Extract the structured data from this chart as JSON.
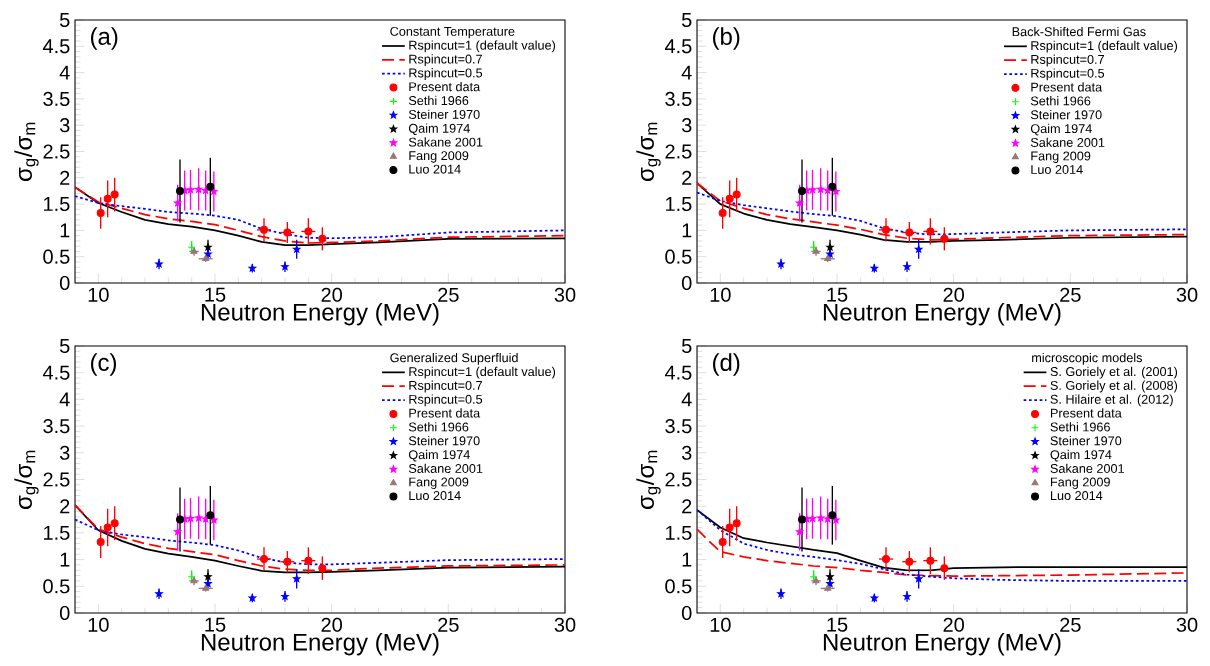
{
  "chart_data": [
    {
      "type": "line",
      "annotations": [
        "(a)"
      ],
      "legend_title": "Constant Temperature",
      "xlabel": "Neutron Energy (MeV)",
      "ylabel": "σ$_{g}$/σ$_{m}$",
      "xlim": [
        9,
        30
      ],
      "ylim": [
        0,
        5
      ],
      "xticks": [
        10,
        15,
        20,
        25,
        30
      ],
      "yticks": [
        0,
        0.5,
        1,
        1.5,
        2,
        2.5,
        3,
        3.5,
        4,
        4.5,
        5
      ],
      "legend": "top right",
      "series": [
        {
          "name": "Rspincut=1 (default value)",
          "color": "#000000",
          "line_style": "solid",
          "marker": "none",
          "x": [
            9,
            10,
            11,
            12,
            13,
            14,
            15,
            16,
            17,
            18,
            19,
            20,
            22,
            25,
            30
          ],
          "values": [
            1.82,
            1.52,
            1.35,
            1.2,
            1.12,
            1.07,
            1.0,
            0.9,
            0.78,
            0.72,
            0.72,
            0.74,
            0.77,
            0.84,
            0.85
          ]
        },
        {
          "name": "Rspincut=0.7",
          "color": "#ff0000",
          "line_style": "dashed",
          "marker": "none",
          "x": [
            9,
            10,
            11,
            12,
            13,
            14,
            15,
            16,
            17,
            18,
            19,
            20,
            22,
            25,
            30
          ],
          "values": [
            1.82,
            1.54,
            1.42,
            1.3,
            1.22,
            1.17,
            1.11,
            1.0,
            0.88,
            0.8,
            0.76,
            0.77,
            0.8,
            0.87,
            0.9
          ]
        },
        {
          "name": "Rspincut=0.5",
          "color": "#0000ff",
          "line_style": "dotted",
          "marker": "none",
          "x": [
            9,
            10,
            11,
            12,
            13,
            14,
            15,
            16,
            17,
            18,
            19,
            20,
            22,
            25,
            30
          ],
          "values": [
            1.65,
            1.52,
            1.46,
            1.41,
            1.35,
            1.32,
            1.28,
            1.2,
            1.03,
            0.93,
            0.86,
            0.85,
            0.87,
            0.96,
            1.0
          ]
        },
        {
          "name": "Present data",
          "type": "scatter",
          "color": "#ff0000",
          "marker": "circle",
          "x": [
            10.1,
            10.4,
            10.7,
            17.1,
            18.1,
            19.0,
            19.6
          ],
          "values": [
            1.33,
            1.6,
            1.68,
            1.01,
            0.96,
            0.98,
            0.84
          ],
          "errors": [
            0.3,
            0.35,
            0.32,
            0.22,
            0.2,
            0.25,
            0.22
          ],
          "xerrors": [
            null,
            null,
            null,
            0.3,
            0.3,
            0.3,
            null
          ]
        },
        {
          "name": "Sethi 1966",
          "type": "scatter",
          "color": "#00ff00",
          "marker": "cross",
          "x": [
            14.0
          ],
          "values": [
            0.68
          ],
          "errors": [
            0.12
          ]
        },
        {
          "name": "Steiner 1970",
          "type": "scatter",
          "color": "#0000ff",
          "marker": "star",
          "x": [
            12.6,
            14.7,
            16.6,
            18.0,
            18.5
          ],
          "values": [
            0.36,
            0.55,
            0.28,
            0.31,
            0.64
          ],
          "errors": [
            0.1,
            0.1,
            0.08,
            0.1,
            0.18
          ]
        },
        {
          "name": "Qaim 1974",
          "type": "scatter",
          "color": "#000000",
          "marker": "star",
          "x": [
            14.7
          ],
          "values": [
            0.68
          ],
          "errors": [
            0.14
          ]
        },
        {
          "name": "Sakane 2001",
          "type": "scatter",
          "color": "#ff00ff",
          "marker": "star",
          "x": [
            13.4,
            13.7,
            13.95,
            14.3,
            14.6,
            14.95
          ],
          "values": [
            1.52,
            1.76,
            1.77,
            1.78,
            1.76,
            1.74
          ],
          "errors": [
            0.35,
            0.38,
            0.38,
            0.4,
            0.38,
            0.38
          ]
        },
        {
          "name": "Fang 2009",
          "type": "scatter",
          "color": "#997777",
          "marker": "triangle",
          "x": [
            14.1,
            14.6
          ],
          "values": [
            0.6,
            0.46
          ],
          "errors": [
            0.08,
            0.06
          ],
          "xerrors": [
            0.2,
            0.3
          ]
        },
        {
          "name": "Luo 2014",
          "type": "scatter",
          "color": "#000000",
          "marker": "circle",
          "x": [
            13.5,
            14.8
          ],
          "values": [
            1.75,
            1.83
          ],
          "errors": [
            0.6,
            0.55
          ],
          "xerrors": [
            0.1,
            0.1
          ]
        }
      ]
    },
    {
      "type": "line",
      "annotations": [
        "(b)"
      ],
      "legend_title": "Back-Shifted Fermi Gas",
      "xlabel": "Neutron Energy (MeV)",
      "ylabel": "σ$_{g}$/σ$_{m}$",
      "xlim": [
        9,
        30
      ],
      "ylim": [
        0,
        5
      ],
      "xticks": [
        10,
        15,
        20,
        25,
        30
      ],
      "yticks": [
        0,
        0.5,
        1,
        1.5,
        2,
        2.5,
        3,
        3.5,
        4,
        4.5,
        5
      ],
      "legend": "top right",
      "series": [
        {
          "name": "Rspincut=1 (default value)",
          "color": "#000000",
          "line_style": "solid",
          "marker": "none",
          "x": [
            9,
            10,
            11,
            12,
            13,
            14,
            15,
            16,
            17,
            18,
            19,
            20,
            22,
            25,
            30
          ],
          "values": [
            1.9,
            1.5,
            1.32,
            1.2,
            1.12,
            1.06,
            1.0,
            0.92,
            0.82,
            0.78,
            0.78,
            0.8,
            0.82,
            0.86,
            0.88
          ]
        },
        {
          "name": "Rspincut=0.7",
          "color": "#ff0000",
          "line_style": "dashed",
          "marker": "none",
          "x": [
            9,
            10,
            11,
            12,
            13,
            14,
            15,
            16,
            17,
            18,
            19,
            20,
            22,
            25,
            30
          ],
          "values": [
            1.9,
            1.56,
            1.42,
            1.3,
            1.22,
            1.16,
            1.1,
            1.02,
            0.92,
            0.85,
            0.82,
            0.83,
            0.86,
            0.9,
            0.92
          ]
        },
        {
          "name": "Rspincut=0.5",
          "color": "#0000ff",
          "line_style": "dotted",
          "marker": "none",
          "x": [
            9,
            10,
            11,
            12,
            13,
            14,
            15,
            16,
            17,
            18,
            19,
            20,
            22,
            25,
            30
          ],
          "values": [
            1.72,
            1.56,
            1.48,
            1.42,
            1.36,
            1.31,
            1.27,
            1.18,
            1.04,
            0.96,
            0.92,
            0.93,
            0.96,
            1.0,
            1.02
          ]
        },
        {
          "name": "Present data",
          "type": "scatter",
          "color": "#ff0000",
          "marker": "circle",
          "x": [
            10.1,
            10.4,
            10.7,
            17.1,
            18.1,
            19.0,
            19.6
          ],
          "values": [
            1.33,
            1.6,
            1.68,
            1.01,
            0.96,
            0.98,
            0.84
          ],
          "errors": [
            0.3,
            0.35,
            0.32,
            0.22,
            0.2,
            0.25,
            0.22
          ],
          "xerrors": [
            null,
            null,
            null,
            0.3,
            0.3,
            0.3,
            null
          ]
        },
        {
          "name": "Sethi 1966",
          "type": "scatter",
          "color": "#00ff00",
          "marker": "cross",
          "x": [
            14.0
          ],
          "values": [
            0.68
          ],
          "errors": [
            0.12
          ]
        },
        {
          "name": "Steiner 1970",
          "type": "scatter",
          "color": "#0000ff",
          "marker": "star",
          "x": [
            12.6,
            14.7,
            16.6,
            18.0,
            18.5
          ],
          "values": [
            0.36,
            0.55,
            0.28,
            0.31,
            0.64
          ],
          "errors": [
            0.1,
            0.1,
            0.08,
            0.1,
            0.18
          ]
        },
        {
          "name": "Qaim 1974",
          "type": "scatter",
          "color": "#000000",
          "marker": "star",
          "x": [
            14.7
          ],
          "values": [
            0.68
          ],
          "errors": [
            0.14
          ]
        },
        {
          "name": "Sakane 2001",
          "type": "scatter",
          "color": "#ff00ff",
          "marker": "star",
          "x": [
            13.4,
            13.7,
            13.95,
            14.3,
            14.6,
            14.95
          ],
          "values": [
            1.52,
            1.76,
            1.77,
            1.78,
            1.76,
            1.74
          ],
          "errors": [
            0.35,
            0.38,
            0.38,
            0.4,
            0.38,
            0.38
          ]
        },
        {
          "name": "Fang 2009",
          "type": "scatter",
          "color": "#997777",
          "marker": "triangle",
          "x": [
            14.1,
            14.6
          ],
          "values": [
            0.6,
            0.46
          ],
          "errors": [
            0.08,
            0.06
          ],
          "xerrors": [
            0.2,
            0.3
          ]
        },
        {
          "name": "Luo 2014",
          "type": "scatter",
          "color": "#000000",
          "marker": "circle",
          "x": [
            13.5,
            14.8
          ],
          "values": [
            1.75,
            1.83
          ],
          "errors": [
            0.6,
            0.55
          ],
          "xerrors": [
            0.1,
            0.1
          ]
        }
      ]
    },
    {
      "type": "line",
      "annotations": [
        "(c)"
      ],
      "legend_title": "Generalized Superfluid",
      "xlabel": "Neutron Energy (MeV)",
      "ylabel": "σ$_{g}$/σ$_{m}$",
      "xlim": [
        9,
        30
      ],
      "ylim": [
        0,
        5
      ],
      "xticks": [
        10,
        15,
        20,
        25,
        30
      ],
      "yticks": [
        0,
        0.5,
        1,
        1.5,
        2,
        2.5,
        3,
        3.5,
        4,
        4.5,
        5
      ],
      "legend": "top right",
      "series": [
        {
          "name": "Rspincut=1 (default value)",
          "color": "#000000",
          "line_style": "solid",
          "marker": "none",
          "x": [
            9,
            10,
            11,
            12,
            13,
            14,
            15,
            16,
            17,
            18,
            19,
            20,
            22,
            25,
            30
          ],
          "values": [
            2.02,
            1.55,
            1.35,
            1.2,
            1.11,
            1.05,
            0.98,
            0.88,
            0.79,
            0.76,
            0.76,
            0.77,
            0.8,
            0.85,
            0.87
          ]
        },
        {
          "name": "Rspincut=0.7",
          "color": "#ff0000",
          "line_style": "dashed",
          "marker": "none",
          "x": [
            9,
            10,
            11,
            12,
            13,
            14,
            15,
            16,
            17,
            18,
            19,
            20,
            22,
            25,
            30
          ],
          "values": [
            2.02,
            1.57,
            1.42,
            1.3,
            1.21,
            1.15,
            1.09,
            0.98,
            0.88,
            0.82,
            0.8,
            0.8,
            0.84,
            0.88,
            0.9
          ]
        },
        {
          "name": "Rspincut=0.5",
          "color": "#0000ff",
          "line_style": "dotted",
          "marker": "none",
          "x": [
            9,
            10,
            11,
            12,
            13,
            14,
            15,
            16,
            17,
            18,
            19,
            20,
            22,
            25,
            30
          ],
          "values": [
            1.75,
            1.55,
            1.47,
            1.42,
            1.36,
            1.32,
            1.27,
            1.17,
            1.03,
            0.95,
            0.91,
            0.91,
            0.94,
            0.99,
            1.01
          ]
        },
        {
          "name": "Present data",
          "type": "scatter",
          "color": "#ff0000",
          "marker": "circle",
          "x": [
            10.1,
            10.4,
            10.7,
            17.1,
            18.1,
            19.0,
            19.6
          ],
          "values": [
            1.33,
            1.6,
            1.68,
            1.01,
            0.96,
            0.98,
            0.84
          ],
          "errors": [
            0.3,
            0.35,
            0.32,
            0.22,
            0.2,
            0.25,
            0.22
          ],
          "xerrors": [
            null,
            null,
            null,
            0.3,
            0.3,
            0.3,
            null
          ]
        },
        {
          "name": "Sethi 1966",
          "type": "scatter",
          "color": "#00ff00",
          "marker": "cross",
          "x": [
            14.0
          ],
          "values": [
            0.68
          ],
          "errors": [
            0.12
          ]
        },
        {
          "name": "Steiner 1970",
          "type": "scatter",
          "color": "#0000ff",
          "marker": "star",
          "x": [
            12.6,
            14.7,
            16.6,
            18.0,
            18.5
          ],
          "values": [
            0.36,
            0.55,
            0.28,
            0.31,
            0.64
          ],
          "errors": [
            0.1,
            0.1,
            0.08,
            0.1,
            0.18
          ]
        },
        {
          "name": "Qaim 1974",
          "type": "scatter",
          "color": "#000000",
          "marker": "star",
          "x": [
            14.7
          ],
          "values": [
            0.68
          ],
          "errors": [
            0.14
          ]
        },
        {
          "name": "Sakane 2001",
          "type": "scatter",
          "color": "#ff00ff",
          "marker": "star",
          "x": [
            13.4,
            13.7,
            13.95,
            14.3,
            14.6,
            14.95
          ],
          "values": [
            1.52,
            1.76,
            1.77,
            1.78,
            1.76,
            1.74
          ],
          "errors": [
            0.35,
            0.38,
            0.38,
            0.4,
            0.38,
            0.38
          ]
        },
        {
          "name": "Fang 2009",
          "type": "scatter",
          "color": "#997777",
          "marker": "triangle",
          "x": [
            14.1,
            14.6
          ],
          "values": [
            0.6,
            0.46
          ],
          "errors": [
            0.08,
            0.06
          ],
          "xerrors": [
            0.2,
            0.3
          ]
        },
        {
          "name": "Luo 2014",
          "type": "scatter",
          "color": "#000000",
          "marker": "circle",
          "x": [
            13.5,
            14.8
          ],
          "values": [
            1.75,
            1.83
          ],
          "errors": [
            0.6,
            0.55
          ],
          "xerrors": [
            0.1,
            0.1
          ]
        }
      ]
    },
    {
      "type": "line",
      "annotations": [
        "(d)"
      ],
      "legend_title": "microscopic models",
      "xlabel": "Neutron Energy (MeV)",
      "ylabel": "σ$_{g}$/σ$_{m}$",
      "xlim": [
        9,
        30
      ],
      "ylim": [
        0,
        5
      ],
      "xticks": [
        10,
        15,
        20,
        25,
        30
      ],
      "yticks": [
        0,
        0.5,
        1,
        1.5,
        2,
        2.5,
        3,
        3.5,
        4,
        4.5,
        5
      ],
      "legend": "top right",
      "series": [
        {
          "name": "S. Goriely et al. (2001)",
          "color": "#000000",
          "line_style": "solid",
          "marker": "none",
          "x": [
            9,
            10,
            11,
            12,
            13,
            14,
            15,
            16,
            17,
            18,
            19,
            20,
            23,
            30
          ],
          "values": [
            1.93,
            1.6,
            1.4,
            1.32,
            1.25,
            1.18,
            1.12,
            0.98,
            0.85,
            0.8,
            0.8,
            0.84,
            0.86,
            0.86
          ]
        },
        {
          "name": "S. Goriely et al. (2008)",
          "color": "#ff0000",
          "line_style": "dashed",
          "marker": "none",
          "x": [
            9,
            9.5,
            10,
            11,
            12,
            13,
            14,
            15,
            16,
            17,
            18,
            19,
            20,
            25,
            30
          ],
          "values": [
            1.57,
            1.35,
            1.15,
            1.05,
            0.98,
            0.93,
            0.88,
            0.85,
            0.8,
            0.76,
            0.71,
            0.7,
            0.69,
            0.71,
            0.75
          ]
        },
        {
          "name": "S. Hilaire et al. (2012)",
          "color": "#0000ff",
          "line_style": "dotted",
          "marker": "none",
          "x": [
            9,
            10,
            11,
            12,
            13,
            14,
            15,
            16,
            17,
            18,
            19,
            20,
            22,
            25,
            30
          ],
          "values": [
            1.93,
            1.55,
            1.3,
            1.18,
            1.1,
            1.05,
            0.99,
            0.92,
            0.82,
            0.72,
            0.68,
            0.65,
            0.62,
            0.6,
            0.6
          ]
        },
        {
          "name": "Present data",
          "type": "scatter",
          "color": "#ff0000",
          "marker": "circle",
          "x": [
            10.1,
            10.4,
            10.7,
            17.1,
            18.1,
            19.0,
            19.6
          ],
          "values": [
            1.33,
            1.6,
            1.68,
            1.01,
            0.96,
            0.98,
            0.84
          ],
          "errors": [
            0.3,
            0.35,
            0.32,
            0.22,
            0.2,
            0.25,
            0.22
          ],
          "xerrors": [
            null,
            null,
            null,
            0.3,
            0.3,
            0.3,
            null
          ]
        },
        {
          "name": "Sethi 1966",
          "type": "scatter",
          "color": "#00ff00",
          "marker": "cross",
          "x": [
            14.0
          ],
          "values": [
            0.68
          ],
          "errors": [
            0.12
          ]
        },
        {
          "name": "Steiner 1970",
          "type": "scatter",
          "color": "#0000ff",
          "marker": "star",
          "x": [
            12.6,
            14.7,
            16.6,
            18.0,
            18.5
          ],
          "values": [
            0.36,
            0.55,
            0.28,
            0.31,
            0.64
          ],
          "errors": [
            0.1,
            0.1,
            0.08,
            0.1,
            0.18
          ]
        },
        {
          "name": "Qaim 1974",
          "type": "scatter",
          "color": "#000000",
          "marker": "star",
          "x": [
            14.7
          ],
          "values": [
            0.68
          ],
          "errors": [
            0.14
          ]
        },
        {
          "name": "Sakane 2001",
          "type": "scatter",
          "color": "#ff00ff",
          "marker": "star",
          "x": [
            13.4,
            13.7,
            13.95,
            14.3,
            14.6,
            14.95
          ],
          "values": [
            1.52,
            1.76,
            1.77,
            1.78,
            1.76,
            1.74
          ],
          "errors": [
            0.35,
            0.38,
            0.38,
            0.4,
            0.38,
            0.38
          ]
        },
        {
          "name": "Fang 2009",
          "type": "scatter",
          "color": "#997777",
          "marker": "triangle",
          "x": [
            14.1,
            14.6
          ],
          "values": [
            0.6,
            0.46
          ],
          "errors": [
            0.08,
            0.06
          ],
          "xerrors": [
            0.2,
            0.3
          ]
        },
        {
          "name": "Luo 2014",
          "type": "scatter",
          "color": "#000000",
          "marker": "circle",
          "x": [
            13.5,
            14.8
          ],
          "values": [
            1.75,
            1.83
          ],
          "errors": [
            0.6,
            0.55
          ],
          "xerrors": [
            0.1,
            0.1
          ]
        }
      ]
    }
  ]
}
